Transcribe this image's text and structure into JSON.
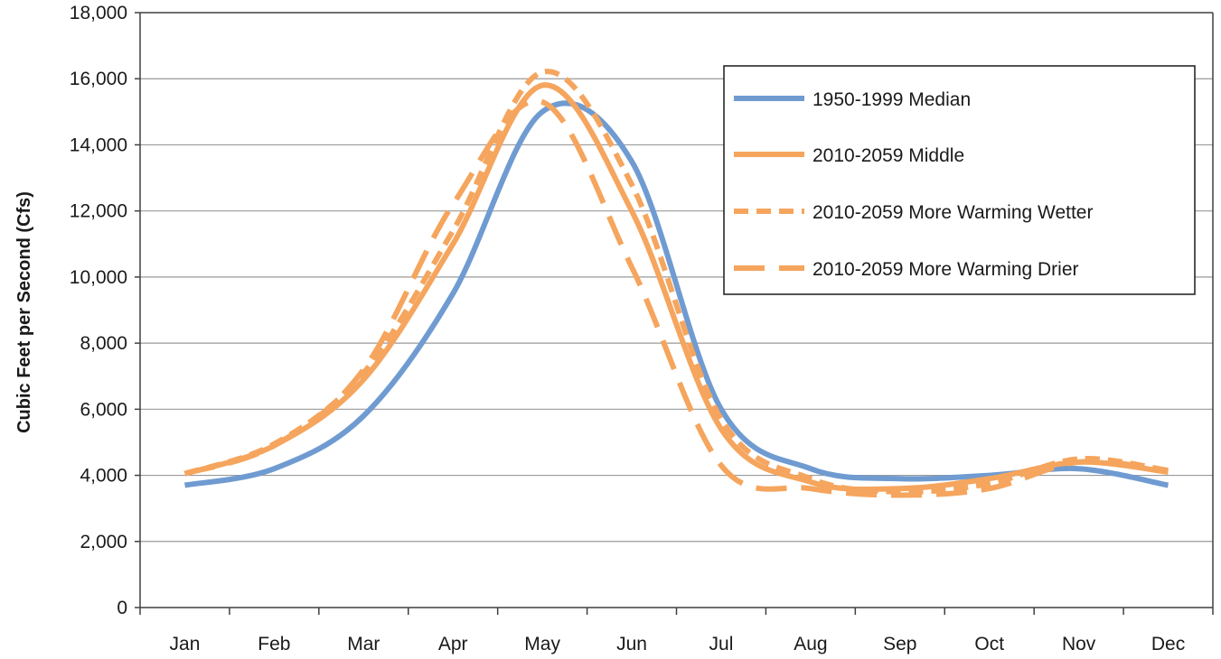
{
  "chart_data": {
    "type": "line",
    "title": "",
    "xlabel": "",
    "ylabel": "Cubic Feet per Second (Cfs)",
    "ylim": [
      0,
      18000
    ],
    "yticks": [
      "0",
      "2,000",
      "4,000",
      "6,000",
      "8,000",
      "10,000",
      "12,000",
      "14,000",
      "16,000",
      "18,000"
    ],
    "categories": [
      "Jan",
      "Feb",
      "Mar",
      "Apr",
      "May",
      "Jun",
      "Jul",
      "Aug",
      "Sep",
      "Oct",
      "Nov",
      "Dec"
    ],
    "grid": "horizontal",
    "legend_position": "top-right",
    "series": [
      {
        "name": "1950-1999 Median",
        "color": "#6f9bd1",
        "dash": "solid",
        "values": [
          3700,
          4200,
          5800,
          9500,
          15000,
          13500,
          6000,
          4200,
          3900,
          4000,
          4200,
          3700
        ]
      },
      {
        "name": "2010-2059 Middle",
        "color": "#f5a55d",
        "dash": "solid",
        "values": [
          4050,
          4900,
          6900,
          11000,
          15800,
          12000,
          5400,
          3800,
          3600,
          3900,
          4400,
          4100
        ]
      },
      {
        "name": "2010-2059 More Warming Wetter",
        "color": "#f5a55d",
        "dash": "dash",
        "values": [
          4050,
          4950,
          7100,
          11400,
          16200,
          12800,
          5700,
          3900,
          3500,
          3750,
          4500,
          4150
        ]
      },
      {
        "name": "2010-2059 More Warming Drier",
        "color": "#f5a55d",
        "dash": "longdash",
        "values": [
          4050,
          4900,
          7200,
          12200,
          15300,
          10300,
          4300,
          3600,
          3400,
          3600,
          4400,
          4150
        ]
      }
    ]
  }
}
